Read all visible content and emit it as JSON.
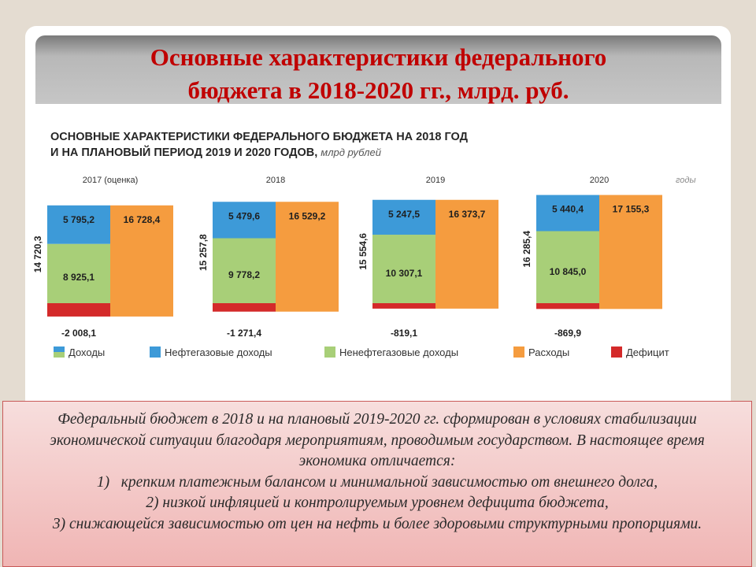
{
  "slide": {
    "title_line1": "Основные характеристики федерального",
    "title_line2": "бюджета в 2018-2020 гг., млрд. руб."
  },
  "chart_heading": {
    "line1": "ОСНОВНЫЕ ХАРАКТЕРИСТИКИ ФЕДЕРАЛЬНОГО БЮДЖЕТА НА 2018 ГОД",
    "line2": "И НА ПЛАНОВЫЙ ПЕРИОД 2019 И 2020 ГОДОВ,",
    "unit": "млрд рублей"
  },
  "chart_data": {
    "type": "bar",
    "x_axis_label": "годы",
    "categories": [
      "2017 (оценка)",
      "2018",
      "2019",
      "2020"
    ],
    "series": [
      {
        "name": "Нефтегазовые доходы",
        "color": "#3d9ad8",
        "values": [
          5795.2,
          5479.6,
          5247.5,
          5440.4
        ],
        "labels": [
          "5 795,2",
          "5 479,6",
          "5 247,5",
          "5 440,4"
        ]
      },
      {
        "name": "Ненефтегазовые доходы",
        "color": "#a8cf78",
        "values": [
          8925.1,
          9778.2,
          10307.1,
          10845.0
        ],
        "labels": [
          "8 925,1",
          "9 778,2",
          "10 307,1",
          "10 845,0"
        ]
      },
      {
        "name": "Расходы",
        "color": "#f59c3f",
        "values": [
          16728.4,
          16529.2,
          16373.7,
          17155.3
        ],
        "labels": [
          "16 728,4",
          "16 529,2",
          "16 373,7",
          "17 155,3"
        ]
      },
      {
        "name": "Дефицит",
        "color": "#d42a2a",
        "values": [
          -2008.1,
          -1271.4,
          -819.1,
          -869.9
        ],
        "labels": [
          "-2 008,1",
          "-1 271,4",
          "-819,1",
          "-869,9"
        ]
      }
    ],
    "total_revenue": {
      "name": "Доходы",
      "values": [
        14720.3,
        15257.8,
        15554.6,
        16285.4
      ],
      "labels": [
        "14 720,3",
        "15 257,8",
        "15 554,6",
        "16 285,4"
      ]
    },
    "legend": [
      "Доходы",
      "Нефтегазовые доходы",
      "Ненефтегазовые доходы",
      "Расходы",
      "Дефицит"
    ],
    "legend_position": "bottom",
    "grid": false
  },
  "text_box": {
    "intro": "Федеральный бюджет в 2018 и на плановый 2019-2020 гг. сформирован в условиях стабилизации экономической ситуации благодаря мероприятиям, проводимым государством. В настоящее время экономика отличается:",
    "item1_marker": "1)",
    "item1": "крепким платежным балансом и минимальной зависимостью от внешнего долга,",
    "item2": "2) низкой инфляцией и контролируемым уровнем дефицита бюджета,",
    "item3": "3) снижающейся зависимостью от цен на нефть и более здоровыми структурными пропорциями."
  }
}
